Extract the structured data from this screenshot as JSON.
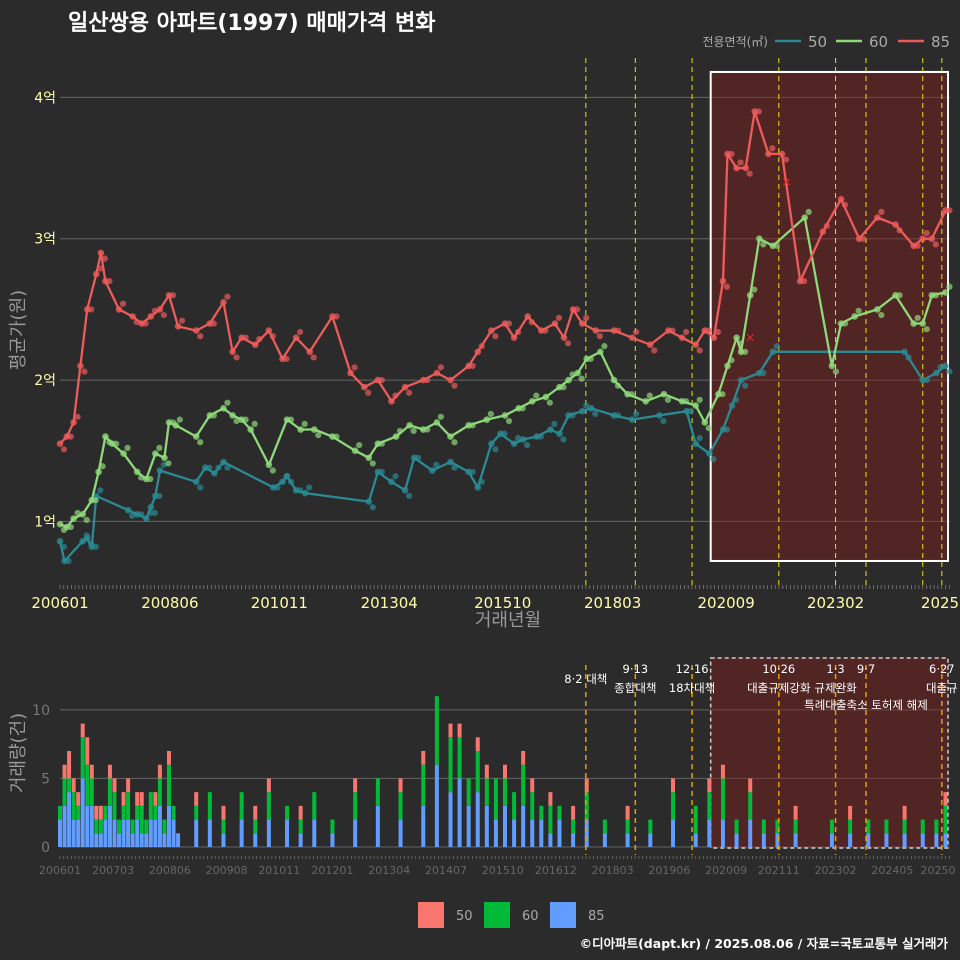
{
  "title": "일산쌍용 아파트(1997) 매매가격 변화",
  "footer": "©디아파트(dapt.kr) / 2025.08.06 / 자료=국토교통부 실거래가",
  "colors": {
    "s50": "#2b8a94",
    "s60": "#8ed97a",
    "s85": "#ee5b5b",
    "v50": "#f8766d",
    "v60": "#00ba38",
    "v85": "#619cff",
    "ylabel": "#ffffaa",
    "vline": "#e6e600",
    "vline2": "#e6a000"
  },
  "chart_data": [
    {
      "type": "line",
      "title": "일산쌍용 아파트(1997) 매매가격 변화",
      "xlabel": "거래년월",
      "ylabel": "평균가(원)",
      "legend_title": "전용면적(㎡)",
      "legend_position": "top-right",
      "xlim": [
        2006.0,
        2025.6
      ],
      "ylim": [
        0.55,
        4.3
      ],
      "x_ticks": [
        {
          "x": 2006.0,
          "label": "200601"
        },
        {
          "x": 2008.42,
          "label": "200806"
        },
        {
          "x": 2010.83,
          "label": "201011"
        },
        {
          "x": 2013.25,
          "label": "201304"
        },
        {
          "x": 2015.75,
          "label": "201510"
        },
        {
          "x": 2018.17,
          "label": "201803"
        },
        {
          "x": 2020.67,
          "label": "202009"
        },
        {
          "x": 2023.08,
          "label": "202302"
        },
        {
          "x": 2025.5,
          "label": "2025"
        }
      ],
      "y_ticks": [
        {
          "y": 1,
          "label": "1억"
        },
        {
          "y": 2,
          "label": "2억"
        },
        {
          "y": 3,
          "label": "3억"
        },
        {
          "y": 4,
          "label": "4억"
        }
      ],
      "policy_lines": [
        2017.58,
        2018.67,
        2019.92,
        2021.83,
        2023.08,
        2023.75,
        2025.0,
        2025.42
      ],
      "highlight_range": [
        2020.33,
        2025.6,
        0.72,
        4.18
      ],
      "series": [
        {
          "name": "50",
          "x": [
            2006.0,
            2006.1,
            2006.5,
            2006.6,
            2006.7,
            2006.8,
            2007.5,
            2007.7,
            2007.9,
            2008.0,
            2008.1,
            2008.2,
            2009.0,
            2009.2,
            2009.4,
            2009.6,
            2010.7,
            2010.9,
            2011.0,
            2011.2,
            2011.4,
            2012.8,
            2013.0,
            2013.3,
            2013.6,
            2013.8,
            2014.2,
            2014.6,
            2015.0,
            2015.2,
            2015.5,
            2015.7,
            2016.0,
            2016.2,
            2016.5,
            2016.8,
            2017.0,
            2017.2,
            2017.5,
            2017.7,
            2018.2,
            2018.6,
            2019.2,
            2019.8,
            2020.0,
            2020.3,
            2020.6,
            2020.8,
            2021.0,
            2021.4,
            2021.7,
            2024.6,
            2025.0,
            2025.3,
            2025.5
          ],
          "values": [
            0.86,
            0.72,
            0.86,
            0.88,
            0.82,
            1.18,
            1.08,
            1.05,
            1.02,
            1.1,
            1.18,
            1.36,
            1.28,
            1.38,
            1.34,
            1.42,
            1.24,
            1.28,
            1.32,
            1.22,
            1.2,
            1.14,
            1.35,
            1.28,
            1.22,
            1.45,
            1.36,
            1.42,
            1.35,
            1.24,
            1.55,
            1.62,
            1.55,
            1.58,
            1.6,
            1.65,
            1.62,
            1.75,
            1.78,
            1.8,
            1.75,
            1.72,
            1.75,
            1.78,
            1.55,
            1.48,
            1.65,
            1.82,
            2.0,
            2.05,
            2.2,
            2.2,
            2.0,
            2.05,
            2.1
          ]
        },
        {
          "name": "60",
          "x": [
            2006.0,
            2006.15,
            2006.3,
            2006.5,
            2006.7,
            2006.85,
            2007.0,
            2007.15,
            2007.4,
            2007.7,
            2007.9,
            2008.1,
            2008.3,
            2008.4,
            2008.55,
            2009.0,
            2009.3,
            2009.6,
            2009.8,
            2010.0,
            2010.2,
            2010.6,
            2011.0,
            2011.3,
            2011.6,
            2012.0,
            2012.5,
            2012.8,
            2013.0,
            2013.4,
            2013.7,
            2014.0,
            2014.3,
            2014.6,
            2015.0,
            2015.4,
            2015.8,
            2016.1,
            2016.4,
            2016.7,
            2017.0,
            2017.2,
            2017.4,
            2017.6,
            2017.9,
            2018.2,
            2018.5,
            2018.9,
            2019.3,
            2019.7,
            2020.0,
            2020.2,
            2020.5,
            2020.7,
            2020.9,
            2021.0,
            2021.2,
            2021.4,
            2021.7,
            2022.4,
            2023.0,
            2023.2,
            2023.5,
            2024.0,
            2024.4,
            2024.8,
            2025.0,
            2025.2,
            2025.5
          ],
          "values": [
            0.98,
            0.96,
            1.02,
            1.05,
            1.15,
            1.35,
            1.6,
            1.55,
            1.48,
            1.35,
            1.3,
            1.48,
            1.45,
            1.7,
            1.68,
            1.6,
            1.75,
            1.8,
            1.75,
            1.72,
            1.65,
            1.4,
            1.72,
            1.65,
            1.65,
            1.6,
            1.5,
            1.45,
            1.55,
            1.6,
            1.68,
            1.65,
            1.7,
            1.6,
            1.68,
            1.72,
            1.75,
            1.8,
            1.85,
            1.88,
            1.95,
            2.0,
            2.05,
            2.15,
            2.2,
            2.0,
            1.9,
            1.85,
            1.9,
            1.85,
            1.82,
            1.7,
            1.9,
            2.1,
            2.3,
            2.2,
            2.6,
            3.0,
            2.95,
            3.15,
            2.1,
            2.4,
            2.45,
            2.5,
            2.6,
            2.4,
            2.4,
            2.6,
            2.62
          ]
        },
        {
          "name": "85",
          "x": [
            2006.0,
            2006.15,
            2006.3,
            2006.45,
            2006.6,
            2006.8,
            2006.9,
            2007.0,
            2007.3,
            2007.6,
            2007.8,
            2008.0,
            2008.2,
            2008.4,
            2008.6,
            2009.0,
            2009.3,
            2009.6,
            2009.8,
            2010.0,
            2010.3,
            2010.6,
            2010.9,
            2011.2,
            2011.5,
            2012.0,
            2012.4,
            2012.7,
            2013.0,
            2013.3,
            2013.6,
            2014.0,
            2014.3,
            2014.6,
            2015.0,
            2015.2,
            2015.5,
            2015.8,
            2016.0,
            2016.3,
            2016.6,
            2016.9,
            2017.1,
            2017.3,
            2017.5,
            2017.8,
            2018.2,
            2018.6,
            2019.0,
            2019.4,
            2019.7,
            2020.0,
            2020.2,
            2020.4,
            2020.6,
            2020.7,
            2020.9,
            2021.1,
            2021.3,
            2021.6,
            2021.9,
            2022.3,
            2022.8,
            2023.2,
            2023.6,
            2024.0,
            2024.4,
            2024.8,
            2025.0,
            2025.2,
            2025.5
          ],
          "values": [
            1.55,
            1.6,
            1.7,
            2.1,
            2.5,
            2.75,
            2.9,
            2.7,
            2.5,
            2.45,
            2.4,
            2.45,
            2.5,
            2.6,
            2.38,
            2.35,
            2.4,
            2.55,
            2.2,
            2.3,
            2.25,
            2.35,
            2.15,
            2.3,
            2.2,
            2.45,
            2.05,
            1.95,
            2.0,
            1.85,
            1.95,
            2.0,
            2.05,
            2.0,
            2.1,
            2.2,
            2.35,
            2.4,
            2.3,
            2.45,
            2.35,
            2.4,
            2.3,
            2.5,
            2.4,
            2.35,
            2.35,
            2.3,
            2.25,
            2.35,
            2.3,
            2.25,
            2.35,
            2.3,
            2.7,
            3.6,
            3.5,
            3.5,
            3.9,
            3.6,
            3.6,
            2.7,
            3.05,
            3.28,
            3.0,
            3.15,
            3.1,
            2.95,
            3.0,
            3.0,
            3.2
          ]
        }
      ],
      "annotations": [
        {
          "x": 2021.2,
          "y": 2.3,
          "text": "×"
        },
        {
          "x": 2022.0,
          "y": 3.4,
          "text": "×"
        }
      ]
    },
    {
      "type": "bar",
      "ylabel": "거래량(건)",
      "xlim": [
        2006.0,
        2025.6
      ],
      "ylim": [
        0,
        14
      ],
      "stacked": true,
      "x_ticks": [
        {
          "x": 2006.0,
          "label": "200601"
        },
        {
          "x": 2007.17,
          "label": "200703"
        },
        {
          "x": 2008.42,
          "label": "200806"
        },
        {
          "x": 2009.67,
          "label": "200908"
        },
        {
          "x": 2010.83,
          "label": "201011"
        },
        {
          "x": 2012.0,
          "label": "201201"
        },
        {
          "x": 2013.25,
          "label": "201304"
        },
        {
          "x": 2014.5,
          "label": "201407"
        },
        {
          "x": 2015.75,
          "label": "201510"
        },
        {
          "x": 2016.92,
          "label": "201612"
        },
        {
          "x": 2018.17,
          "label": "201803"
        },
        {
          "x": 2019.42,
          "label": "201906"
        },
        {
          "x": 2020.67,
          "label": "202009"
        },
        {
          "x": 2021.83,
          "label": "202111"
        },
        {
          "x": 2023.08,
          "label": "202302"
        },
        {
          "x": 2024.33,
          "label": "202405"
        },
        {
          "x": 2025.5,
          "label": "20250"
        }
      ],
      "y_ticks": [
        {
          "y": 0,
          "label": "0"
        },
        {
          "y": 5,
          "label": "5"
        },
        {
          "y": 10,
          "label": "10"
        }
      ],
      "policy_labels": [
        {
          "x": 2017.58,
          "date": "",
          "text": "8·2 대책"
        },
        {
          "x": 2018.67,
          "date": "9·13",
          "text": "종합대책"
        },
        {
          "x": 2019.92,
          "date": "12·16",
          "text": "18차대책"
        },
        {
          "x": 2021.83,
          "date": "10·26",
          "text": "대출규제강화"
        },
        {
          "x": 2023.08,
          "date": "1·3",
          "text": "규제완화"
        },
        {
          "x": 2023.75,
          "date": "9·7",
          "text": "특례대출축소 토허제 해제"
        },
        {
          "x": 2025.42,
          "date": "6·27",
          "text": "대출규"
        }
      ],
      "categories_x": [
        2006.0,
        2006.1,
        2006.2,
        2006.3,
        2006.4,
        2006.5,
        2006.6,
        2006.7,
        2006.8,
        2006.9,
        2007.0,
        2007.1,
        2007.2,
        2007.3,
        2007.4,
        2007.5,
        2007.6,
        2007.7,
        2007.8,
        2007.9,
        2008.0,
        2008.1,
        2008.2,
        2008.3,
        2008.4,
        2008.5,
        2008.6,
        2009.0,
        2009.3,
        2009.6,
        2010.0,
        2010.3,
        2010.6,
        2011.0,
        2011.3,
        2011.6,
        2012.0,
        2012.5,
        2013.0,
        2013.5,
        2014.0,
        2014.3,
        2014.6,
        2014.8,
        2015.0,
        2015.2,
        2015.4,
        2015.6,
        2015.8,
        2016.0,
        2016.2,
        2016.4,
        2016.6,
        2016.8,
        2017.0,
        2017.3,
        2017.6,
        2018.0,
        2018.5,
        2019.0,
        2019.5,
        2020.0,
        2020.3,
        2020.6,
        2020.9,
        2021.2,
        2021.5,
        2021.8,
        2022.2,
        2022.6,
        2023.0,
        2023.4,
        2023.8,
        2024.2,
        2024.6,
        2025.0,
        2025.3,
        2025.5
      ],
      "series": [
        {
          "name": "50",
          "values": [
            0,
            1,
            2,
            1,
            1,
            1,
            2,
            1,
            1,
            1,
            0,
            1,
            1,
            0,
            1,
            1,
            0,
            1,
            1,
            0,
            0,
            1,
            1,
            0,
            1,
            0,
            0,
            1,
            0,
            1,
            0,
            1,
            1,
            0,
            1,
            0,
            0,
            1,
            0,
            1,
            1,
            0,
            1,
            1,
            0,
            1,
            1,
            0,
            1,
            0,
            1,
            1,
            0,
            1,
            0,
            1,
            1,
            0,
            1,
            0,
            1,
            0,
            1,
            1,
            0,
            1,
            0,
            0,
            1,
            0,
            0,
            1,
            0,
            0,
            1,
            0,
            0,
            1
          ]
        },
        {
          "name": "60",
          "values": [
            1,
            2,
            1,
            2,
            1,
            3,
            3,
            2,
            1,
            1,
            1,
            2,
            2,
            1,
            1,
            2,
            1,
            1,
            2,
            1,
            2,
            1,
            2,
            1,
            3,
            1,
            0,
            1,
            2,
            1,
            2,
            1,
            2,
            1,
            1,
            2,
            1,
            2,
            2,
            2,
            3,
            5,
            4,
            3,
            2,
            3,
            2,
            3,
            2,
            2,
            3,
            2,
            1,
            2,
            1,
            1,
            2,
            1,
            1,
            1,
            2,
            2,
            2,
            3,
            1,
            2,
            1,
            1,
            1,
            0,
            1,
            1,
            1,
            1,
            1,
            1,
            1,
            2
          ]
        },
        {
          "name": "85",
          "values": [
            2,
            3,
            4,
            2,
            2,
            5,
            3,
            3,
            1,
            1,
            2,
            3,
            2,
            1,
            2,
            2,
            1,
            2,
            1,
            1,
            2,
            2,
            3,
            1,
            3,
            2,
            1,
            2,
            2,
            1,
            2,
            1,
            2,
            2,
            1,
            2,
            1,
            2,
            3,
            2,
            3,
            6,
            4,
            5,
            3,
            4,
            3,
            2,
            3,
            2,
            3,
            2,
            2,
            1,
            2,
            1,
            2,
            1,
            1,
            1,
            2,
            1,
            2,
            2,
            1,
            2,
            1,
            1,
            1,
            0,
            1,
            1,
            1,
            1,
            1,
            1,
            1,
            1
          ]
        }
      ],
      "legend": [
        {
          "name": "50"
        },
        {
          "name": "60"
        },
        {
          "name": "85"
        }
      ]
    }
  ]
}
